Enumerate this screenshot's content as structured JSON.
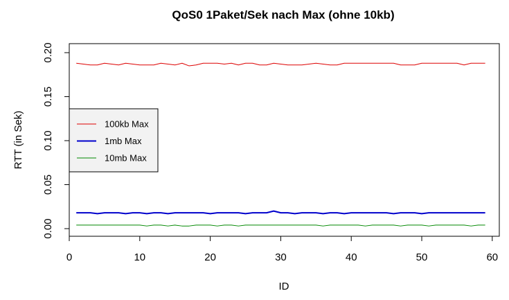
{
  "chart_data": {
    "type": "line",
    "title": "QoS0 1Paket/Sek nach Max (ohne 10kb)",
    "xlabel": "ID",
    "ylabel": "RTT (in Sek)",
    "xlim": [
      0,
      61
    ],
    "ylim": [
      0,
      0.2
    ],
    "x_ticks": [
      0,
      10,
      20,
      30,
      40,
      50,
      60
    ],
    "x_tick_labels": [
      "0",
      "10",
      "20",
      "30",
      "40",
      "50",
      "60"
    ],
    "y_ticks": [
      0.0,
      0.05,
      0.1,
      0.15,
      0.2
    ],
    "y_tick_labels": [
      "0.00",
      "0.05",
      "0.10",
      "0.15",
      "0.20"
    ],
    "grid": false,
    "legend_position": "left",
    "x": [
      1,
      2,
      3,
      4,
      5,
      6,
      7,
      8,
      9,
      10,
      11,
      12,
      13,
      14,
      15,
      16,
      17,
      18,
      19,
      20,
      21,
      22,
      23,
      24,
      25,
      26,
      27,
      28,
      29,
      30,
      31,
      32,
      33,
      34,
      35,
      36,
      37,
      38,
      39,
      40,
      41,
      42,
      43,
      44,
      45,
      46,
      47,
      48,
      49,
      50,
      51,
      52,
      53,
      54,
      55,
      56,
      57,
      58,
      59
    ],
    "series": [
      {
        "name": "100kb Max",
        "color": "#dd0000",
        "line_width": 1,
        "values": [
          0.188,
          0.187,
          0.186,
          0.186,
          0.188,
          0.187,
          0.186,
          0.188,
          0.187,
          0.186,
          0.186,
          0.186,
          0.188,
          0.187,
          0.186,
          0.188,
          0.185,
          0.186,
          0.188,
          0.188,
          0.188,
          0.187,
          0.188,
          0.186,
          0.188,
          0.188,
          0.186,
          0.186,
          0.188,
          0.187,
          0.186,
          0.186,
          0.186,
          0.187,
          0.188,
          0.187,
          0.186,
          0.186,
          0.188,
          0.188,
          0.188,
          0.188,
          0.188,
          0.188,
          0.188,
          0.188,
          0.186,
          0.186,
          0.186,
          0.188,
          0.188,
          0.188,
          0.188,
          0.188,
          0.188,
          0.186,
          0.188,
          0.188,
          0.188
        ]
      },
      {
        "name": "1mb Max",
        "color": "#0000cc",
        "line_width": 2,
        "values": [
          0.018,
          0.018,
          0.018,
          0.017,
          0.018,
          0.018,
          0.018,
          0.017,
          0.018,
          0.018,
          0.017,
          0.018,
          0.018,
          0.017,
          0.018,
          0.018,
          0.018,
          0.018,
          0.018,
          0.017,
          0.018,
          0.018,
          0.018,
          0.018,
          0.017,
          0.018,
          0.018,
          0.018,
          0.02,
          0.018,
          0.018,
          0.017,
          0.018,
          0.018,
          0.018,
          0.017,
          0.018,
          0.018,
          0.017,
          0.018,
          0.018,
          0.018,
          0.018,
          0.018,
          0.018,
          0.017,
          0.018,
          0.018,
          0.018,
          0.017,
          0.018,
          0.018,
          0.018,
          0.018,
          0.018,
          0.018,
          0.018,
          0.018,
          0.018
        ]
      },
      {
        "name": "10mb Max",
        "color": "#008800",
        "line_width": 1,
        "values": [
          0.004,
          0.004,
          0.004,
          0.004,
          0.004,
          0.004,
          0.004,
          0.004,
          0.004,
          0.004,
          0.003,
          0.004,
          0.004,
          0.003,
          0.004,
          0.003,
          0.003,
          0.004,
          0.004,
          0.004,
          0.003,
          0.004,
          0.004,
          0.003,
          0.004,
          0.004,
          0.004,
          0.004,
          0.004,
          0.004,
          0.004,
          0.004,
          0.004,
          0.004,
          0.004,
          0.003,
          0.004,
          0.004,
          0.004,
          0.004,
          0.004,
          0.003,
          0.004,
          0.004,
          0.004,
          0.004,
          0.003,
          0.004,
          0.004,
          0.004,
          0.003,
          0.004,
          0.004,
          0.004,
          0.004,
          0.004,
          0.003,
          0.004,
          0.004
        ]
      }
    ]
  }
}
